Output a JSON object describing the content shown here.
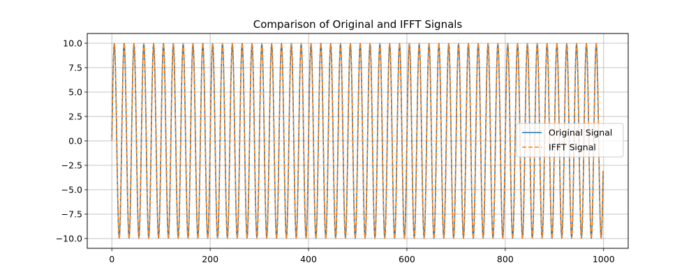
{
  "chart_data": {
    "type": "line",
    "title": "Comparison of Original and IFFT Signals",
    "xlabel": "",
    "ylabel": "",
    "xlim": [
      -50,
      1050
    ],
    "ylim": [
      -11,
      11
    ],
    "xticks": [
      0,
      200,
      400,
      600,
      800,
      1000
    ],
    "yticks": [
      -10.0,
      -7.5,
      -5.0,
      -2.5,
      0.0,
      2.5,
      5.0,
      7.5,
      10.0
    ],
    "xtick_labels": [
      "0",
      "200",
      "400",
      "600",
      "800",
      "1000"
    ],
    "ytick_labels": [
      "−10.0",
      "−7.5",
      "−5.0",
      "−2.5",
      "0.0",
      "2.5",
      "5.0",
      "7.5",
      "10.0"
    ],
    "grid": true,
    "legend_position": "center-right",
    "x": {
      "start": 0,
      "end": 999,
      "step": 1
    },
    "series": [
      {
        "name": "Original Signal",
        "color": "#1f77b4",
        "style": "solid",
        "formula": "10*sin(2*pi*50*n/1000)",
        "amplitude": 10,
        "cycles": 50,
        "samples": 1000
      },
      {
        "name": "IFFT Signal",
        "color": "#ff7f0e",
        "style": "dashed",
        "formula": "10*sin(2*pi*50*n/1000)",
        "amplitude": 10,
        "cycles": 50,
        "samples": 1000
      }
    ]
  }
}
